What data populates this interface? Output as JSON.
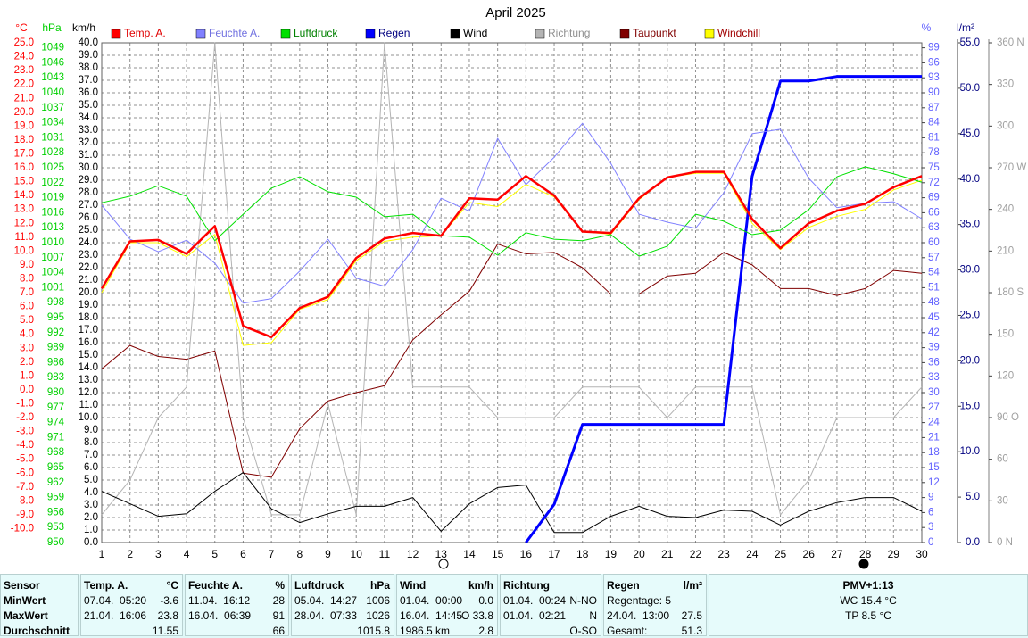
{
  "chart_data": {
    "type": "line",
    "title": "April 2025",
    "x": [
      1,
      2,
      3,
      4,
      5,
      6,
      7,
      8,
      9,
      10,
      11,
      12,
      13,
      14,
      15,
      16,
      17,
      18,
      19,
      20,
      21,
      22,
      23,
      24,
      25,
      26,
      27,
      28,
      29,
      30
    ],
    "xlim": [
      1,
      30
    ],
    "grid": true,
    "axes": [
      {
        "label": "°C",
        "color": "#ff0000",
        "lim": [
          -11,
          25
        ],
        "ticks": [
          {
            "value": 25,
            "label": "25.0"
          },
          {
            "value": 24,
            "label": "24.0"
          },
          {
            "value": 23,
            "label": "23.0"
          },
          {
            "value": 22,
            "label": "22.0"
          },
          {
            "value": 21,
            "label": "21.0"
          },
          {
            "value": 20,
            "label": "20.0"
          },
          {
            "value": 19,
            "label": "19.0"
          },
          {
            "value": 18,
            "label": "18.0"
          },
          {
            "value": 17,
            "label": "17.0"
          },
          {
            "value": 16,
            "label": "16.0"
          },
          {
            "value": 15,
            "label": "15.0"
          },
          {
            "value": 14,
            "label": "14.0"
          },
          {
            "value": 13,
            "label": "13.0"
          },
          {
            "value": 12,
            "label": "12.0"
          },
          {
            "value": 11,
            "label": "11.0"
          },
          {
            "value": 10,
            "label": "10.0"
          },
          {
            "value": 9,
            "label": "9.0"
          },
          {
            "value": 8,
            "label": "8.0"
          },
          {
            "value": 7,
            "label": "7.0"
          },
          {
            "value": 6,
            "label": "6.0"
          },
          {
            "value": 5,
            "label": "5.0"
          },
          {
            "value": 4,
            "label": "4.0"
          },
          {
            "value": 3,
            "label": "3.0"
          },
          {
            "value": 2,
            "label": "2.0"
          },
          {
            "value": 1,
            "label": "1.0"
          },
          {
            "value": 0,
            "label": "0.0"
          },
          {
            "value": -1,
            "label": "-1.0"
          },
          {
            "value": -2,
            "label": "-2.0"
          },
          {
            "value": -3,
            "label": "-3.0"
          },
          {
            "value": -4,
            "label": "-4.0"
          },
          {
            "value": -5,
            "label": "-5.0"
          },
          {
            "value": -6,
            "label": "-6.0"
          },
          {
            "value": -7,
            "label": "-7.0"
          },
          {
            "value": -8,
            "label": "-8.0"
          },
          {
            "value": -9,
            "label": "-9.0"
          },
          {
            "value": -10,
            "label": "-10.0"
          }
        ]
      },
      {
        "label": "hPa",
        "color": "#00d000",
        "lim": [
          950,
          1050
        ],
        "ticks": [
          1049,
          1046,
          1043,
          1040,
          1037,
          1034,
          1031,
          1028,
          1025,
          1022,
          1019,
          1016,
          1013,
          1010,
          1007,
          1004,
          1001,
          998,
          995,
          992,
          989,
          986,
          983,
          980,
          977,
          974,
          971,
          968,
          965,
          962,
          959,
          956,
          953,
          950
        ]
      },
      {
        "label": "km/h",
        "color": "#000000",
        "lim": [
          0,
          40
        ],
        "ticks": [
          {
            "value": 40,
            "label": "40.0"
          },
          {
            "value": 39,
            "label": "39.0"
          },
          {
            "value": 38,
            "label": "38.0"
          },
          {
            "value": 37,
            "label": "37.0"
          },
          {
            "value": 36,
            "label": "36.0"
          },
          {
            "value": 35,
            "label": "35.0"
          },
          {
            "value": 34,
            "label": "34.0"
          },
          {
            "value": 33,
            "label": "33.0"
          },
          {
            "value": 32,
            "label": "32.0"
          },
          {
            "value": 31,
            "label": "31.0"
          },
          {
            "value": 30,
            "label": "30.0"
          },
          {
            "value": 29,
            "label": "29.0"
          },
          {
            "value": 28,
            "label": "28.0"
          },
          {
            "value": 27,
            "label": "27.0"
          },
          {
            "value": 26,
            "label": "26.0"
          },
          {
            "value": 25,
            "label": "25.0"
          },
          {
            "value": 24,
            "label": "24.0"
          },
          {
            "value": 23,
            "label": "23.0"
          },
          {
            "value": 22,
            "label": "22.0"
          },
          {
            "value": 21,
            "label": "21.0"
          },
          {
            "value": 20,
            "label": "20.0"
          },
          {
            "value": 19,
            "label": "19.0"
          },
          {
            "value": 18,
            "label": "18.0"
          },
          {
            "value": 17,
            "label": "17.0"
          },
          {
            "value": 16,
            "label": "16.0"
          },
          {
            "value": 15,
            "label": "15.0"
          },
          {
            "value": 14,
            "label": "14.0"
          },
          {
            "value": 13,
            "label": "13.0"
          },
          {
            "value": 12,
            "label": "12.0"
          },
          {
            "value": 11,
            "label": "11.0"
          },
          {
            "value": 10,
            "label": "10.0"
          },
          {
            "value": 9,
            "label": "9.0"
          },
          {
            "value": 8,
            "label": "8.0"
          },
          {
            "value": 7,
            "label": "7.0"
          },
          {
            "value": 6,
            "label": "6.0"
          },
          {
            "value": 5,
            "label": "5.0"
          },
          {
            "value": 4,
            "label": "4.0"
          },
          {
            "value": 3,
            "label": "3.0"
          },
          {
            "value": 2,
            "label": "2.0"
          },
          {
            "value": 1,
            "label": "1.0"
          },
          {
            "value": 0,
            "label": "0.0"
          }
        ]
      },
      {
        "label": "%",
        "color": "#6060ff",
        "lim": [
          0,
          100
        ],
        "ticks": [
          99,
          96,
          93,
          90,
          87,
          84,
          81,
          78,
          75,
          72,
          69,
          66,
          63,
          60,
          57,
          54,
          51,
          48,
          45,
          42,
          39,
          36,
          33,
          30,
          27,
          24,
          21,
          18,
          15,
          12,
          9,
          6,
          3,
          0
        ]
      },
      {
        "label": "l/m²",
        "color": "#000080",
        "lim": [
          0,
          55
        ],
        "ticks": [
          {
            "value": 55,
            "label": "55.0"
          },
          {
            "value": 50,
            "label": "50.0"
          },
          {
            "value": 45,
            "label": "45.0"
          },
          {
            "value": 40,
            "label": "40.0"
          },
          {
            "value": 35,
            "label": "35.0"
          },
          {
            "value": 30,
            "label": "30.0"
          },
          {
            "value": 25,
            "label": "25.0"
          },
          {
            "value": 20,
            "label": "20.0"
          },
          {
            "value": 15,
            "label": "15.0"
          },
          {
            "value": 10,
            "label": "10.0"
          },
          {
            "value": 5,
            "label": "5.0"
          },
          {
            "value": 0,
            "label": "0.0"
          }
        ]
      },
      {
        "color": "#a0a0a0",
        "lim": [
          0,
          360
        ],
        "ticks": [
          {
            "value": 360,
            "label": "360 N"
          },
          330,
          300,
          {
            "value": 270,
            "label": "270 W"
          },
          240,
          210,
          {
            "value": 180,
            "label": "180 S"
          },
          150,
          120,
          {
            "value": 90,
            "label": "90 O"
          },
          60,
          30,
          {
            "value": 0,
            "label": "0 N"
          }
        ]
      }
    ],
    "series": [
      {
        "name": "Temp. A.",
        "color": "#ff0000",
        "label_color": "#e00000",
        "width": 2.5,
        "axis": 0,
        "values": [
          7.3,
          10.7,
          10.8,
          9.8,
          11.8,
          4.6,
          3.8,
          5.9,
          6.7,
          9.5,
          10.9,
          11.3,
          11.1,
          13.8,
          13.7,
          15.4,
          14.0,
          11.4,
          11.3,
          13.8,
          15.3,
          15.7,
          15.7,
          12.3,
          10.2,
          12.0,
          12.9,
          13.4,
          14.6,
          15.4
        ]
      },
      {
        "name": "Feuchte A.",
        "color": "#8080ff",
        "label_color": "#7070e0",
        "width": 1,
        "axis": 3,
        "values": [
          67.5,
          60.7,
          58.2,
          60.5,
          55.9,
          47.9,
          48.8,
          54.3,
          60.7,
          52.9,
          51.3,
          58.6,
          68.9,
          66.3,
          80.9,
          71.6,
          77.1,
          83.9,
          75.9,
          65.7,
          64.1,
          62.9,
          70.0,
          81.8,
          82.7,
          72.9,
          67.0,
          67.9,
          68.2,
          64.8
        ]
      },
      {
        "name": "Luftdruck",
        "color": "#00e000",
        "label_color": "#008000",
        "width": 1,
        "axis": 1,
        "values": [
          1018.0,
          1019.3,
          1021.4,
          1019.3,
          1010.4,
          1015.7,
          1020.9,
          1023.2,
          1020.2,
          1019.1,
          1015.2,
          1015.7,
          1011.4,
          1011.1,
          1007.5,
          1012.0,
          1010.7,
          1010.4,
          1011.6,
          1007.3,
          1009.3,
          1015.7,
          1014.3,
          1011.6,
          1012.5,
          1016.6,
          1023.2,
          1025.2,
          1023.8,
          1022.1
        ]
      },
      {
        "name": "Regen",
        "color": "#0000ff",
        "label_color": "#000080",
        "width": 3,
        "axis": 4,
        "values": [
          null,
          null,
          null,
          null,
          null,
          null,
          null,
          null,
          null,
          null,
          null,
          null,
          null,
          null,
          null,
          0.0,
          4.2,
          13.0,
          13.0,
          13.0,
          13.0,
          13.0,
          13.0,
          40.3,
          50.8,
          50.8,
          51.3,
          51.3,
          51.3,
          51.3
        ]
      },
      {
        "name": "Wind",
        "color": "#000000",
        "label_color": "#000000",
        "width": 1,
        "axis": 2,
        "values": [
          4.1,
          3.1,
          2.1,
          2.3,
          4.1,
          5.6,
          2.7,
          1.6,
          2.3,
          2.9,
          2.9,
          3.6,
          0.9,
          3.1,
          4.4,
          4.6,
          0.8,
          0.8,
          2.1,
          2.9,
          2.1,
          2.0,
          2.6,
          2.5,
          1.4,
          2.5,
          3.2,
          3.6,
          3.6,
          2.5
        ]
      },
      {
        "name": "Richtung",
        "color": "#b4b4b4",
        "label_color": "#909090",
        "width": 1,
        "axis": 5,
        "values": [
          20,
          45,
          90,
          112,
          360,
          90,
          20,
          20,
          100,
          20,
          360,
          112,
          112,
          112,
          90,
          90,
          90,
          112,
          112,
          112,
          90,
          112,
          112,
          112,
          20,
          45,
          90,
          90,
          90,
          112
        ]
      },
      {
        "name": "Taupunkt",
        "color": "#800000",
        "label_color": "#800000",
        "width": 1,
        "axis": 0,
        "values": [
          1.5,
          3.2,
          2.4,
          2.2,
          2.8,
          -6.0,
          -6.3,
          -2.8,
          -0.8,
          -0.2,
          0.3,
          3.6,
          5.4,
          7.1,
          10.5,
          9.8,
          9.9,
          8.8,
          6.9,
          6.9,
          8.2,
          8.4,
          9.9,
          9.0,
          7.3,
          7.3,
          6.8,
          7.3,
          8.6,
          8.4
        ]
      },
      {
        "name": "Windchill",
        "color": "#ffff00",
        "label_color": "#a00000",
        "width": 1,
        "axis": 0,
        "values": [
          7.0,
          10.6,
          10.6,
          9.6,
          11.2,
          3.2,
          3.4,
          5.8,
          6.5,
          9.3,
          10.7,
          11.0,
          11.1,
          13.5,
          13.2,
          14.8,
          13.9,
          11.4,
          11.2,
          13.7,
          15.3,
          15.6,
          15.6,
          12.0,
          10.1,
          11.7,
          12.5,
          13.0,
          14.4,
          15.1
        ]
      }
    ]
  },
  "stats": {
    "header": [
      "Sensor",
      [
        "Temp. A.",
        "°C"
      ],
      [
        "Feuchte A.",
        "%"
      ],
      [
        "Luftdruck",
        "hPa"
      ],
      [
        "Wind",
        "km/h"
      ],
      "Richtung",
      [
        "Regen",
        "l/m²"
      ],
      "PMV+1:13"
    ],
    "rows": [
      [
        "MinWert",
        [
          "07.04.  05:20",
          "-3.6"
        ],
        [
          "11.04.  16:12",
          "28"
        ],
        [
          "05.04.  14:27",
          "1006"
        ],
        [
          "01.04.  00:00",
          "0.0"
        ],
        [
          "01.04.  00:24",
          "N-NO"
        ],
        "Regentage: 5",
        "WC 15.4 °C"
      ],
      [
        "MaxWert",
        [
          "21.04.  16:06",
          "23.8"
        ],
        [
          "16.04.  06:39",
          "91"
        ],
        [
          "28.04.  07:33",
          "1026"
        ],
        [
          "16.04.  14:45",
          "O 33.8"
        ],
        [
          "01.04.  02:21",
          "N"
        ],
        [
          "24.04.  13:00",
          "27.5"
        ],
        "TP 8.5 °C"
      ],
      [
        "Durchschnitt",
        [
          "11.55"
        ],
        [
          "66"
        ],
        [
          "1015.8"
        ],
        [
          "1986.5 km",
          "2.8"
        ],
        [
          "O-SO"
        ],
        [
          "Gesamt:",
          "51.3"
        ]
      ]
    ]
  }
}
